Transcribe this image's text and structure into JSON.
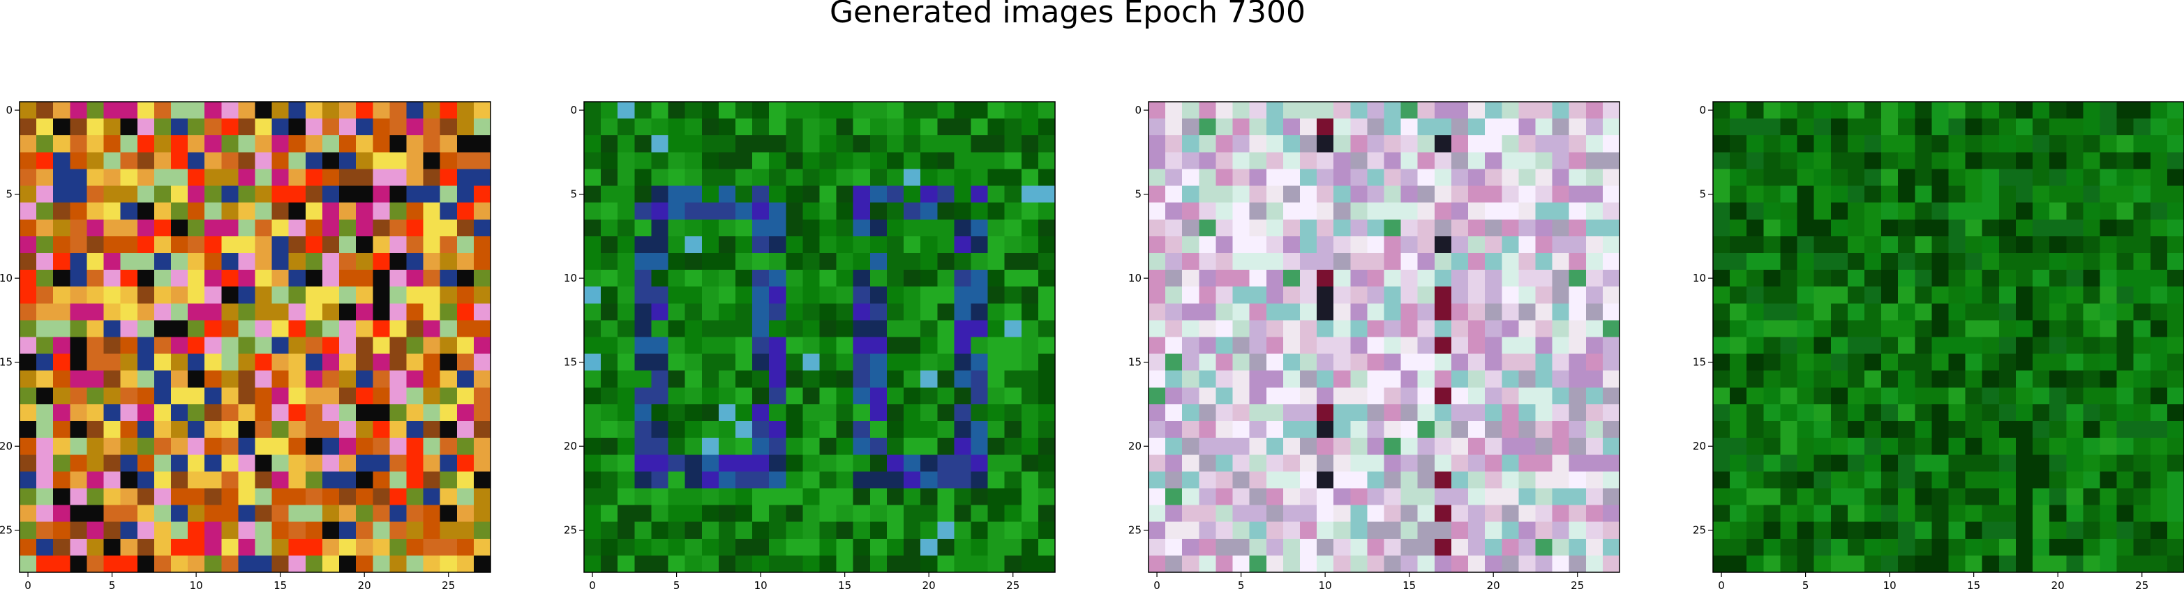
{
  "figure": {
    "title": "Generated images Epoch 7300"
  },
  "chart_data": [
    {
      "type": "heatmap",
      "title": "",
      "xlabel": "",
      "ylabel": "",
      "grid_size": [
        28,
        28
      ],
      "xlim": [
        -0.5,
        27.5
      ],
      "ylim": [
        27.5,
        -0.5
      ],
      "xticks": [
        0,
        5,
        10,
        15,
        20,
        25
      ],
      "yticks": [
        0,
        5,
        10,
        15,
        20,
        25
      ],
      "grid": false,
      "palette": [
        "#b8860b",
        "#d2691e",
        "#e8a33c",
        "#f0c040",
        "#cc5500",
        "#8b4513",
        "#ff2a00",
        "#f4e04d",
        "#6b8e23",
        "#e89bd8",
        "#1e3a8a",
        "#0b0b0b",
        "#c51b7d",
        "#a0d090"
      ]
    },
    {
      "type": "heatmap",
      "title": "",
      "xlabel": "",
      "ylabel": "",
      "grid_size": [
        28,
        28
      ],
      "xlim": [
        -0.5,
        27.5
      ],
      "ylim": [
        27.5,
        -0.5
      ],
      "xticks": [
        0,
        5,
        10,
        15,
        20,
        25
      ],
      "yticks": [
        0,
        5,
        10,
        15,
        20,
        25
      ],
      "grid": false,
      "palette": [
        "#0b6b0b",
        "#0a7f0a",
        "#138f13",
        "#055505",
        "#1b9a1b",
        "#0a4a0a",
        "#2a3f8f",
        "#1f5f9f",
        "#142a5a",
        "#3a1fb0",
        "#22aa22",
        "#5ab0d0"
      ]
    },
    {
      "type": "heatmap",
      "title": "",
      "xlabel": "",
      "ylabel": "",
      "grid_size": [
        28,
        28
      ],
      "xlim": [
        -0.5,
        27.5
      ],
      "ylim": [
        27.5,
        -0.5
      ],
      "xticks": [
        0,
        5,
        10,
        15,
        20,
        25
      ],
      "yticks": [
        0,
        5,
        10,
        15,
        20,
        25
      ],
      "grid": false,
      "palette": [
        "#e6d3ea",
        "#c8b0d8",
        "#f0e8f0",
        "#b890c8",
        "#d8f0e8",
        "#a8a0b8",
        "#f8f0ff",
        "#d090c0",
        "#88c8c8",
        "#e0c0d8",
        "#c0e0d0",
        "#7a1030",
        "#1a1a28",
        "#40a060"
      ]
    },
    {
      "type": "heatmap",
      "title": "",
      "xlabel": "",
      "ylabel": "",
      "grid_size": [
        28,
        28
      ],
      "xlim": [
        -0.5,
        27.5
      ],
      "ylim": [
        27.5,
        -0.5
      ],
      "xticks": [
        0,
        5,
        10,
        15,
        20,
        25
      ],
      "yticks": [
        0,
        5,
        10,
        15,
        20,
        25
      ],
      "grid": false,
      "palette": [
        "#0a6a0a",
        "#0c7a0c",
        "#085a08",
        "#118a11",
        "#064a06",
        "#14961e",
        "#0f6e1a",
        "#033a03",
        "#20a020",
        "#0a800f"
      ]
    }
  ]
}
